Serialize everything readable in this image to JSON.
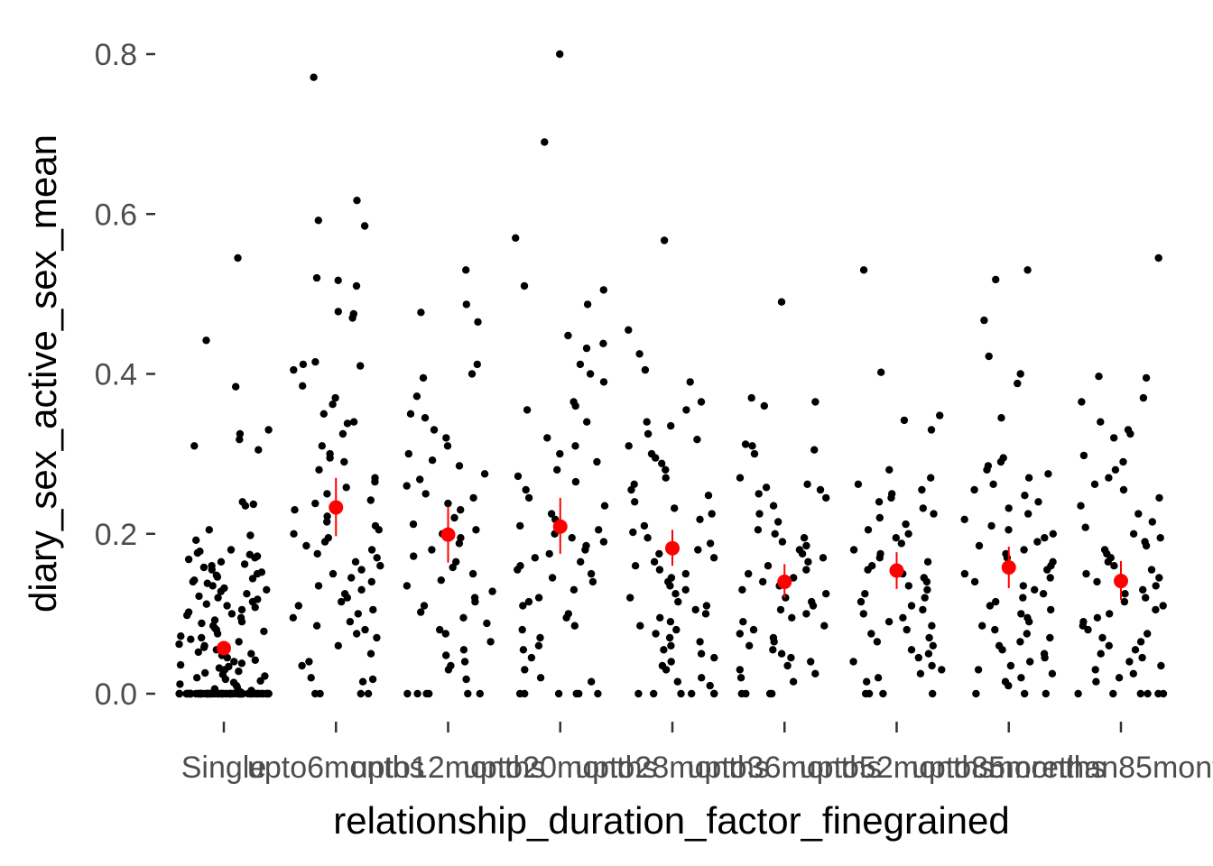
{
  "chart_data": {
    "type": "scatter",
    "subtype": "jittered strip plot with mean and standard-error overlay",
    "title": "",
    "xlabel": "relationship_duration_factor_finegrained",
    "ylabel": "diary_sex_active_sex_mean",
    "ylim": [
      -0.03,
      0.82
    ],
    "y_ticks": [
      "0.0",
      "0.2",
      "0.4",
      "0.6",
      "0.8"
    ],
    "y_tick_values": [
      0.0,
      0.2,
      0.4,
      0.6,
      0.8
    ],
    "categories": [
      "Single",
      "upto6months",
      "upto12months",
      "upto20months",
      "upto28months",
      "upto36months",
      "upto52months",
      "upto85months",
      "morethan85months"
    ],
    "grid": false,
    "legend": "none",
    "colors": {
      "points": "#000000",
      "summary": "#ff0000",
      "tick_text": "#4d4d4d",
      "tick_marks": "#333333"
    },
    "summary": {
      "mean": [
        0.057,
        0.233,
        0.199,
        0.209,
        0.182,
        0.14,
        0.154,
        0.158,
        0.141
      ],
      "ci_low": [
        0.05,
        0.197,
        0.164,
        0.175,
        0.16,
        0.12,
        0.131,
        0.132,
        0.117
      ],
      "ci_high": [
        0.066,
        0.27,
        0.234,
        0.245,
        0.205,
        0.162,
        0.177,
        0.184,
        0.166
      ]
    },
    "series": [
      {
        "category": "Single",
        "values": [
          0.545,
          0.442,
          0.384,
          0.33,
          0.325,
          0.318,
          0.31,
          0.305,
          0.24,
          0.237,
          0.235,
          0.205,
          0.198,
          0.192,
          0.18,
          0.178,
          0.176,
          0.174,
          0.172,
          0.17,
          0.168,
          0.165,
          0.162,
          0.16,
          0.158,
          0.155,
          0.152,
          0.15,
          0.148,
          0.146,
          0.144,
          0.142,
          0.14,
          0.138,
          0.135,
          0.132,
          0.13,
          0.128,
          0.125,
          0.122,
          0.12,
          0.118,
          0.115,
          0.112,
          0.11,
          0.108,
          0.105,
          0.102,
          0.1,
          0.098,
          0.095,
          0.092,
          0.09,
          0.088,
          0.085,
          0.082,
          0.08,
          0.078,
          0.075,
          0.072,
          0.07,
          0.068,
          0.065,
          0.062,
          0.06,
          0.058,
          0.055,
          0.052,
          0.05,
          0.048,
          0.045,
          0.042,
          0.04,
          0.038,
          0.036,
          0.034,
          0.032,
          0.03,
          0.028,
          0.026,
          0.024,
          0.022,
          0.02,
          0.018,
          0.016,
          0.014,
          0.012,
          0.01,
          0.008,
          0.006,
          0.004,
          0.002,
          0.0,
          0.0,
          0.0,
          0.0,
          0.0,
          0.0,
          0.0,
          0.0,
          0.0,
          0.0,
          0.0,
          0.0,
          0.0,
          0.0,
          0.0,
          0.0,
          0.0,
          0.0,
          0.0,
          0.0,
          0.0,
          0.0,
          0.0,
          0.0,
          0.0,
          0.0,
          0.0,
          0.0,
          0.0,
          0.0,
          0.0,
          0.0,
          0.0,
          0.0,
          0.0,
          0.0,
          0.0,
          0.0,
          0.0,
          0.0,
          0.0,
          0.0,
          0.0,
          0.0,
          0.0,
          0.0,
          0.0,
          0.0,
          0.0,
          0.0,
          0.0,
          0.0,
          0.0,
          0.0,
          0.0,
          0.0,
          0.0,
          0.0,
          0.0,
          0.0,
          0.0,
          0.0,
          0.0,
          0.0,
          0.0,
          0.0,
          0.0,
          0.0,
          0.0,
          0.0,
          0.0,
          0.0,
          0.0,
          0.0,
          0.0,
          0.0,
          0.0,
          0.0,
          0.0,
          0.0,
          0.0,
          0.0,
          0.0,
          0.0,
          0.0,
          0.0,
          0.0,
          0.0
        ]
      },
      {
        "category": "upto6months",
        "values": [
          0.771,
          0.617,
          0.592,
          0.585,
          0.52,
          0.517,
          0.51,
          0.478,
          0.475,
          0.47,
          0.415,
          0.412,
          0.41,
          0.405,
          0.385,
          0.37,
          0.362,
          0.35,
          0.34,
          0.338,
          0.325,
          0.31,
          0.3,
          0.295,
          0.29,
          0.28,
          0.27,
          0.265,
          0.258,
          0.25,
          0.242,
          0.238,
          0.23,
          0.222,
          0.215,
          0.21,
          0.205,
          0.2,
          0.195,
          0.19,
          0.185,
          0.18,
          0.175,
          0.17,
          0.165,
          0.16,
          0.155,
          0.15,
          0.145,
          0.14,
          0.135,
          0.13,
          0.125,
          0.12,
          0.115,
          0.11,
          0.105,
          0.1,
          0.095,
          0.09,
          0.085,
          0.08,
          0.075,
          0.07,
          0.06,
          0.05,
          0.04,
          0.035,
          0.02,
          0.018,
          0.015,
          0.0,
          0.0,
          0.0,
          0.0
        ]
      },
      {
        "category": "upto12months",
        "values": [
          0.53,
          0.487,
          0.477,
          0.465,
          0.412,
          0.4,
          0.395,
          0.372,
          0.35,
          0.345,
          0.33,
          0.32,
          0.31,
          0.3,
          0.292,
          0.285,
          0.275,
          0.268,
          0.26,
          0.25,
          0.245,
          0.238,
          0.23,
          0.22,
          0.212,
          0.205,
          0.2,
          0.195,
          0.188,
          0.18,
          0.172,
          0.165,
          0.158,
          0.15,
          0.142,
          0.135,
          0.128,
          0.12,
          0.115,
          0.11,
          0.102,
          0.095,
          0.088,
          0.08,
          0.075,
          0.065,
          0.055,
          0.048,
          0.04,
          0.035,
          0.03,
          0.018,
          0.0,
          0.0,
          0.0,
          0.0,
          0.0,
          0.0
        ]
      },
      {
        "category": "upto20months",
        "values": [
          0.8,
          0.69,
          0.57,
          0.51,
          0.505,
          0.487,
          0.448,
          0.438,
          0.432,
          0.412,
          0.4,
          0.39,
          0.365,
          0.36,
          0.355,
          0.34,
          0.32,
          0.31,
          0.3,
          0.29,
          0.28,
          0.272,
          0.265,
          0.255,
          0.245,
          0.235,
          0.225,
          0.218,
          0.21,
          0.205,
          0.2,
          0.195,
          0.19,
          0.185,
          0.18,
          0.175,
          0.17,
          0.165,
          0.16,
          0.155,
          0.15,
          0.145,
          0.14,
          0.13,
          0.12,
          0.115,
          0.11,
          0.1,
          0.095,
          0.085,
          0.08,
          0.07,
          0.06,
          0.055,
          0.045,
          0.03,
          0.02,
          0.015,
          0.0,
          0.0,
          0.0,
          0.0,
          0.0,
          0.0
        ]
      },
      {
        "category": "upto28months",
        "values": [
          0.567,
          0.455,
          0.425,
          0.405,
          0.39,
          0.365,
          0.355,
          0.34,
          0.335,
          0.325,
          0.318,
          0.31,
          0.3,
          0.295,
          0.288,
          0.28,
          0.27,
          0.262,
          0.255,
          0.248,
          0.24,
          0.232,
          0.225,
          0.218,
          0.21,
          0.202,
          0.195,
          0.188,
          0.18,
          0.175,
          0.17,
          0.165,
          0.16,
          0.155,
          0.15,
          0.145,
          0.14,
          0.135,
          0.13,
          0.125,
          0.12,
          0.115,
          0.11,
          0.105,
          0.1,
          0.095,
          0.09,
          0.085,
          0.08,
          0.075,
          0.07,
          0.065,
          0.06,
          0.055,
          0.05,
          0.045,
          0.04,
          0.035,
          0.03,
          0.02,
          0.015,
          0.01,
          0.0,
          0.0,
          0.0,
          0.0,
          0.0,
          0.0
        ]
      },
      {
        "category": "upto36months",
        "values": [
          0.49,
          0.37,
          0.365,
          0.36,
          0.312,
          0.31,
          0.305,
          0.3,
          0.27,
          0.262,
          0.258,
          0.255,
          0.25,
          0.245,
          0.235,
          0.225,
          0.215,
          0.205,
          0.2,
          0.195,
          0.19,
          0.185,
          0.18,
          0.175,
          0.17,
          0.165,
          0.16,
          0.155,
          0.15,
          0.145,
          0.14,
          0.135,
          0.13,
          0.125,
          0.12,
          0.115,
          0.11,
          0.105,
          0.1,
          0.095,
          0.09,
          0.085,
          0.08,
          0.075,
          0.07,
          0.065,
          0.06,
          0.055,
          0.05,
          0.045,
          0.04,
          0.035,
          0.03,
          0.025,
          0.02,
          0.015,
          0.0,
          0.0,
          0.0,
          0.0
        ]
      },
      {
        "category": "upto52months",
        "values": [
          0.53,
          0.402,
          0.348,
          0.342,
          0.33,
          0.28,
          0.27,
          0.262,
          0.255,
          0.25,
          0.245,
          0.24,
          0.232,
          0.225,
          0.22,
          0.212,
          0.205,
          0.2,
          0.195,
          0.188,
          0.18,
          0.175,
          0.17,
          0.165,
          0.16,
          0.155,
          0.15,
          0.145,
          0.14,
          0.135,
          0.13,
          0.125,
          0.12,
          0.115,
          0.11,
          0.105,
          0.1,
          0.095,
          0.09,
          0.085,
          0.08,
          0.075,
          0.07,
          0.065,
          0.06,
          0.055,
          0.05,
          0.045,
          0.04,
          0.035,
          0.03,
          0.025,
          0.02,
          0.015,
          0.0,
          0.0,
          0.0,
          0.0
        ]
      },
      {
        "category": "upto85months",
        "values": [
          0.518,
          0.53,
          0.467,
          0.422,
          0.4,
          0.388,
          0.345,
          0.295,
          0.29,
          0.285,
          0.28,
          0.275,
          0.27,
          0.262,
          0.255,
          0.248,
          0.24,
          0.232,
          0.225,
          0.218,
          0.21,
          0.205,
          0.2,
          0.195,
          0.19,
          0.185,
          0.18,
          0.175,
          0.17,
          0.165,
          0.16,
          0.155,
          0.15,
          0.145,
          0.14,
          0.135,
          0.13,
          0.125,
          0.12,
          0.115,
          0.11,
          0.105,
          0.1,
          0.095,
          0.09,
          0.085,
          0.08,
          0.075,
          0.07,
          0.065,
          0.06,
          0.055,
          0.05,
          0.045,
          0.04,
          0.035,
          0.03,
          0.025,
          0.02,
          0.015,
          0.01,
          0.0,
          0.0,
          0.0
        ]
      },
      {
        "category": "morethan85months",
        "values": [
          0.545,
          0.397,
          0.395,
          0.37,
          0.365,
          0.34,
          0.33,
          0.325,
          0.32,
          0.298,
          0.29,
          0.28,
          0.27,
          0.262,
          0.255,
          0.245,
          0.235,
          0.225,
          0.215,
          0.208,
          0.2,
          0.195,
          0.19,
          0.185,
          0.18,
          0.175,
          0.17,
          0.165,
          0.16,
          0.155,
          0.15,
          0.145,
          0.14,
          0.135,
          0.13,
          0.125,
          0.12,
          0.115,
          0.11,
          0.105,
          0.1,
          0.095,
          0.09,
          0.085,
          0.08,
          0.075,
          0.07,
          0.065,
          0.06,
          0.055,
          0.05,
          0.045,
          0.04,
          0.035,
          0.03,
          0.025,
          0.02,
          0.015,
          0.0,
          0.0,
          0.0,
          0.0,
          0.0,
          0.0
        ]
      }
    ]
  }
}
